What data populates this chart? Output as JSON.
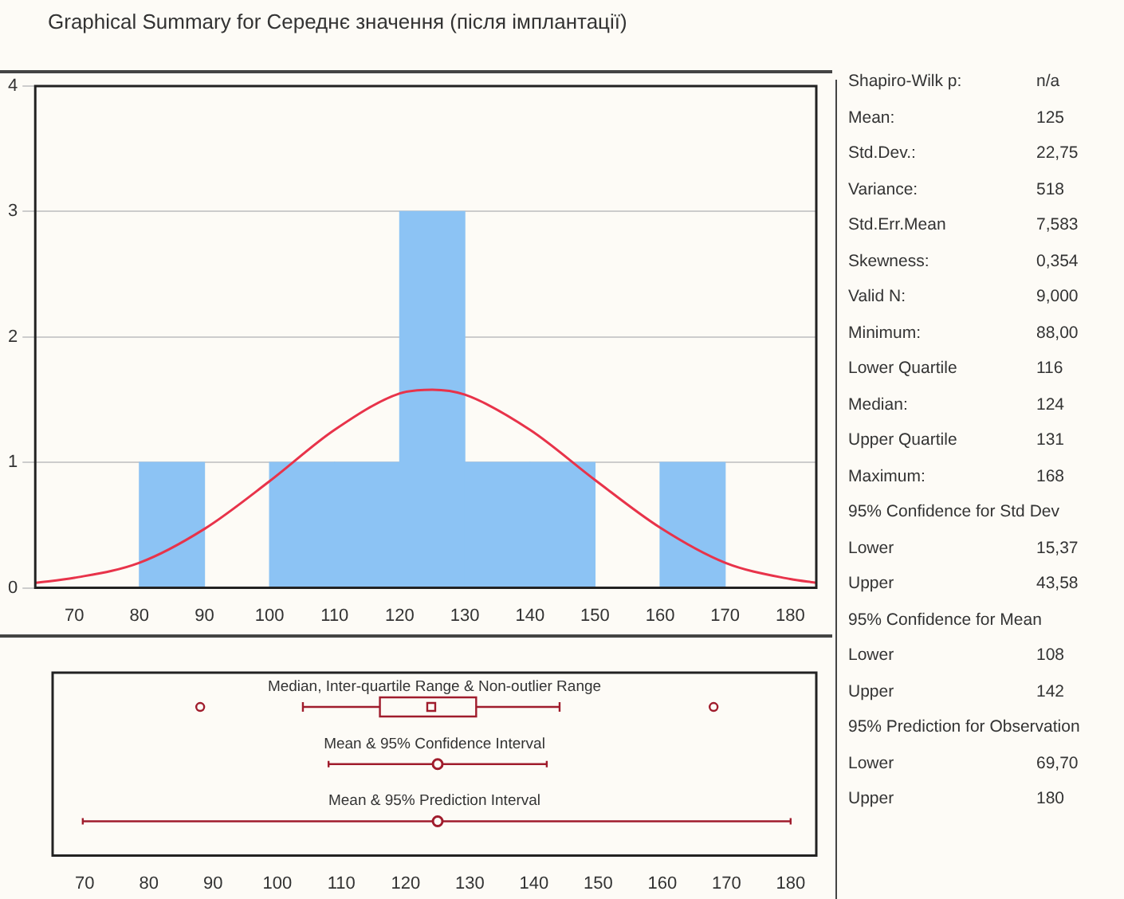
{
  "chart_data": [
    {
      "type": "histogram",
      "title": "Graphical Summary for Середнє значення (після імплантації)",
      "bins": [
        80,
        90,
        100,
        110,
        120,
        130,
        140,
        150,
        160,
        170
      ],
      "xlim": [
        64,
        184
      ],
      "xticks": [
        70,
        80,
        90,
        100,
        110,
        120,
        130,
        140,
        150,
        160,
        170,
        180
      ],
      "ylim": [
        0,
        4
      ],
      "yticks": [
        0,
        1,
        2,
        3,
        4
      ],
      "grid": "y",
      "values": [
        1,
        0,
        1,
        1,
        3,
        1,
        1,
        0,
        1
      ],
      "color": "#8cc3f4",
      "series": [
        {
          "type": "line",
          "color": "#e8334a",
          "x": [
            64,
            70,
            80,
            90,
            100,
            110,
            120,
            125,
            130,
            140,
            150,
            160,
            170,
            180,
            184
          ],
          "values": [
            0.04,
            0.08,
            0.2,
            0.47,
            0.85,
            1.26,
            1.55,
            1.58,
            1.54,
            1.26,
            0.86,
            0.48,
            0.2,
            0.07,
            0.04
          ]
        }
      ]
    },
    {
      "type": "box",
      "orientation": "horizontal",
      "categories": [
        "Median, Inter-quartile Range & Non-outlier Range",
        "Mean & 95% Confidence Interval",
        "Mean & 95% Prediction Interval"
      ],
      "xlim": [
        65,
        184
      ],
      "xticks": [
        70,
        80,
        90,
        100,
        110,
        120,
        130,
        140,
        150,
        160,
        170,
        180
      ],
      "series": [
        {
          "type": "box",
          "color": "#a01c2c",
          "boxes": [
            {
              "low": 104,
              "q1": 116,
              "median": 124,
              "q3": 131,
              "high": 144,
              "outliers": [
                88,
                168
              ]
            },
            null,
            null
          ]
        },
        {
          "type": "scatter",
          "color": "#a01c2c",
          "values": [
            null,
            125,
            125
          ],
          "errors": [
            null,
            [
              108,
              142
            ],
            [
              69.7,
              180
            ]
          ]
        }
      ]
    },
    {
      "type": "other",
      "annotations": [
        "Shapiro-Wilk p:\tn/a",
        "Mean:\t125",
        "Std.Dev.:\t22,75",
        "Variance:\t518",
        "Std.Err.Mean\t7,583",
        "Skewness:\t0,354",
        "Valid N:\t9,000",
        "Minimum:\t88,00",
        "Lower Quartile\t116",
        "Median:\t124",
        "Upper Quartile\t131",
        "Maximum:\t168",
        "95% Confidence for Std Dev",
        "Lower\t15,37",
        "Upper\t43,58",
        "95% Confidence for Mean",
        "Lower\t108",
        "Upper\t142",
        "95% Prediction for Observation",
        "Lower\t69,70",
        "Upper\t180"
      ]
    }
  ]
}
